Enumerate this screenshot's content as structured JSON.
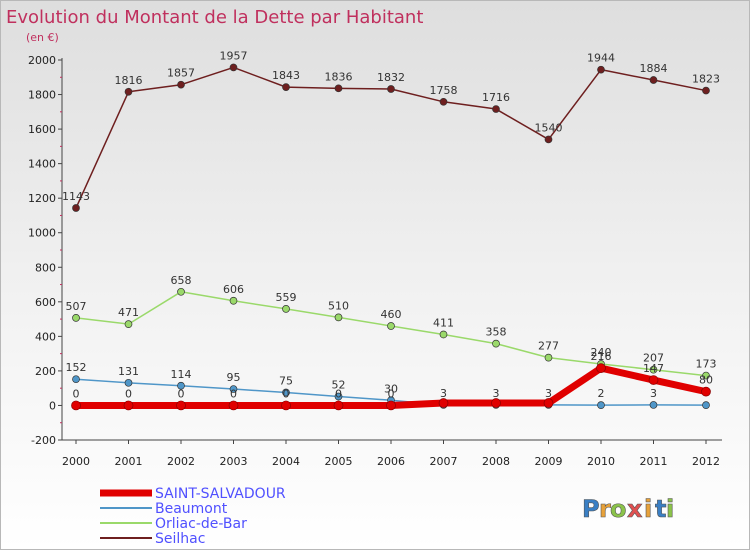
{
  "chart_data": {
    "type": "line",
    "title": "Evolution du Montant de la Dette par Habitant",
    "subtitle": "(en €)",
    "x": [
      "2000",
      "2001",
      "2002",
      "2003",
      "2004",
      "2005",
      "2006",
      "2007",
      "2008",
      "2009",
      "2010",
      "2011",
      "2012"
    ],
    "ylim": [
      -200,
      2000
    ],
    "yticks": [
      -200,
      0,
      200,
      400,
      600,
      800,
      1000,
      1200,
      1400,
      1600,
      1800,
      2000
    ],
    "grid": false,
    "legend_position": "bottom-left",
    "series": [
      {
        "name": "Seilhac",
        "color": "#6e1f1f",
        "values": [
          1143,
          1816,
          1857,
          1957,
          1843,
          1836,
          1832,
          1758,
          1716,
          1540,
          1944,
          1884,
          1823
        ],
        "labels": [
          "1143",
          "1816",
          "1857",
          "1957",
          "1843",
          "1836",
          "1832",
          "1758",
          "1716",
          "1540",
          "1944",
          "1884",
          "1823"
        ]
      },
      {
        "name": "Orliac-de-Bar",
        "color": "#9ad96a",
        "values": [
          507,
          471,
          658,
          606,
          559,
          510,
          460,
          411,
          358,
          277,
          240,
          207,
          173
        ],
        "labels": [
          "507",
          "471",
          "658",
          "606",
          "559",
          "510",
          "460",
          "411",
          "358",
          "277",
          "240",
          "207",
          "173"
        ]
      },
      {
        "name": "Beaumont",
        "color": "#4f96c8",
        "values": [
          152,
          131,
          114,
          95,
          75,
          52,
          30,
          3,
          3,
          3,
          2,
          3,
          2
        ],
        "labels": [
          "152",
          "131",
          "114",
          "95",
          "75",
          "52",
          "30",
          "3",
          "3",
          "3",
          "2",
          "3",
          ""
        ]
      },
      {
        "name": "SAINT-SALVADOUR",
        "color": "#e00000",
        "values": [
          0,
          0,
          0,
          0,
          0,
          0,
          0,
          14,
          14,
          14,
          216,
          147,
          80
        ],
        "labels": [
          "0",
          "0",
          "0",
          "0",
          "0",
          "0",
          "0",
          "",
          "",
          "",
          "216",
          "147",
          "80"
        ]
      }
    ]
  },
  "legend": {
    "items": [
      {
        "label": "SAINT-SALVADOUR",
        "color": "#e00000"
      },
      {
        "label": "Beaumont",
        "color": "#4f96c8"
      },
      {
        "label": "Orliac-de-Bar",
        "color": "#9ad96a"
      },
      {
        "label": "Seilhac",
        "color": "#6e1f1f"
      }
    ]
  },
  "brand": {
    "letters": [
      "P",
      "r",
      "o",
      "x",
      "i",
      "t",
      "i"
    ],
    "colors": [
      "#3a7fc4",
      "#e8a23a",
      "#8bc34a",
      "#e05050",
      "#e8a23a",
      "#3a7fc4",
      "#8bc34a"
    ]
  }
}
